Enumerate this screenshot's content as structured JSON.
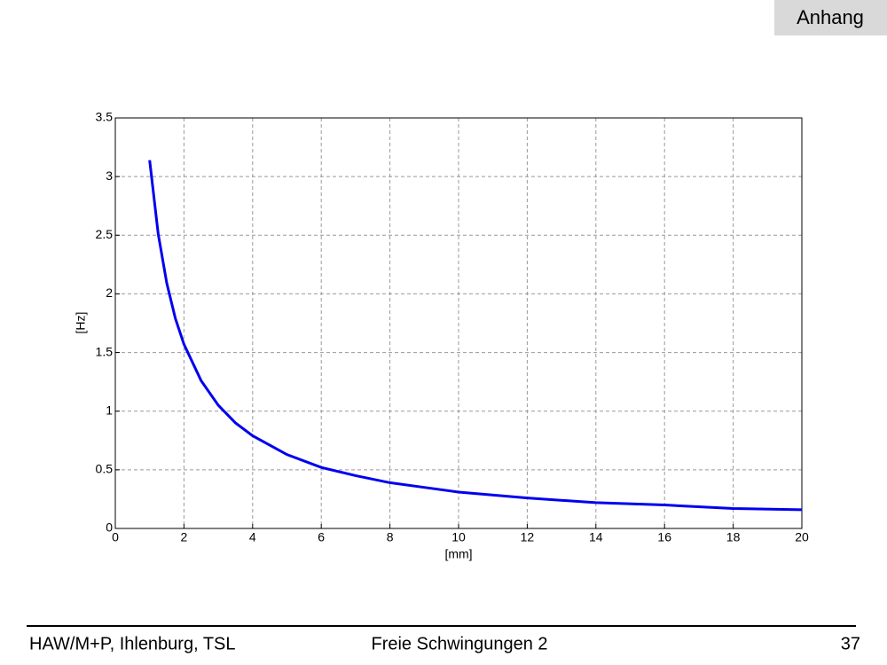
{
  "header": {
    "tag": "Anhang"
  },
  "footer": {
    "left": "HAW/M+P, Ihlenburg, TSL",
    "center": "Freie Schwingungen 2",
    "right": "37"
  },
  "chart_data": {
    "type": "line",
    "xlabel": "[mm]",
    "ylabel": "[Hz]",
    "x": [
      1,
      1.25,
      1.5,
      1.75,
      2,
      2.5,
      3,
      3.5,
      4,
      5,
      6,
      7,
      8,
      9,
      10,
      12,
      14,
      16,
      18,
      20
    ],
    "series": [
      {
        "color": "#0000ee",
        "values": [
          3.14,
          2.51,
          2.09,
          1.79,
          1.57,
          1.26,
          1.05,
          0.9,
          0.79,
          0.63,
          0.52,
          0.45,
          0.39,
          0.35,
          0.31,
          0.26,
          0.22,
          0.2,
          0.17,
          0.16
        ]
      }
    ],
    "xlim": [
      0,
      20
    ],
    "xticks": [
      0,
      2,
      4,
      6,
      8,
      10,
      12,
      14,
      16,
      18,
      20
    ],
    "ylim": [
      0,
      3.5
    ],
    "yticks": [
      0,
      0.5,
      1,
      1.5,
      2,
      2.5,
      3,
      3.5
    ],
    "grid": true
  }
}
